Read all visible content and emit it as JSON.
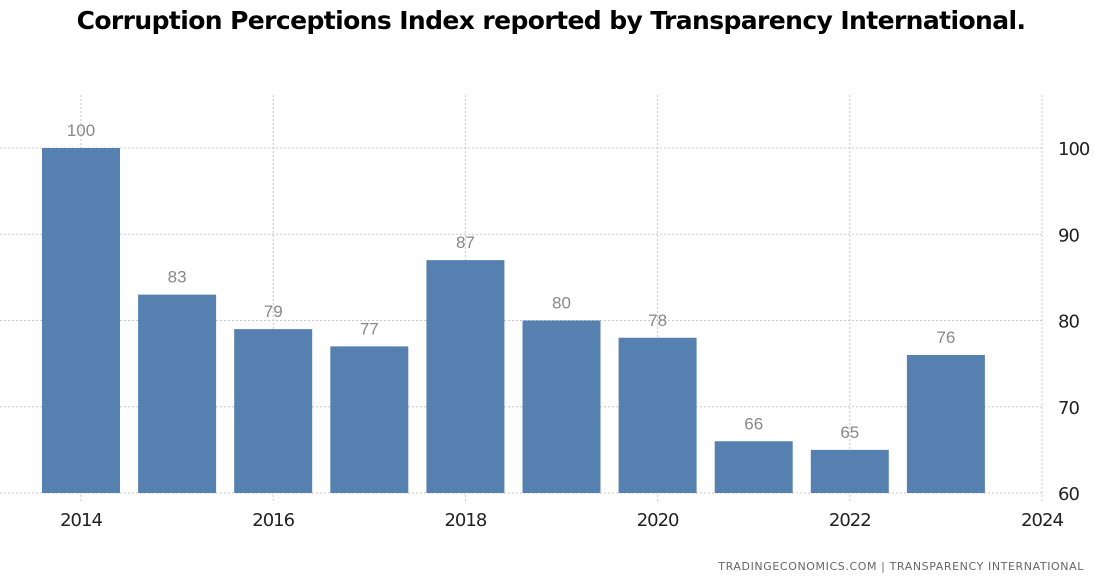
{
  "chart_data": {
    "type": "bar",
    "title": "Corruption Perceptions Index reported by Transparency International.",
    "xlabel": "",
    "ylabel": "",
    "categories": [
      "2014",
      "2015",
      "2016",
      "2017",
      "2018",
      "2019",
      "2020",
      "2021",
      "2022",
      "2023"
    ],
    "values": [
      100,
      83,
      79,
      77,
      87,
      80,
      78,
      66,
      65,
      76
    ],
    "x_ticks": [
      "2014",
      "2016",
      "2018",
      "2020",
      "2022",
      "2024"
    ],
    "y_ticks": [
      60,
      70,
      80,
      90,
      100
    ],
    "ylim": [
      60,
      106
    ],
    "xlim": [
      2014,
      2024
    ],
    "y_axis_side": "right",
    "grid": true,
    "data_labels": true,
    "bar_color": "#5580b0",
    "source": "TRADINGECONOMICS.COM  |  TRANSPARENCY  INTERNATIONAL"
  }
}
